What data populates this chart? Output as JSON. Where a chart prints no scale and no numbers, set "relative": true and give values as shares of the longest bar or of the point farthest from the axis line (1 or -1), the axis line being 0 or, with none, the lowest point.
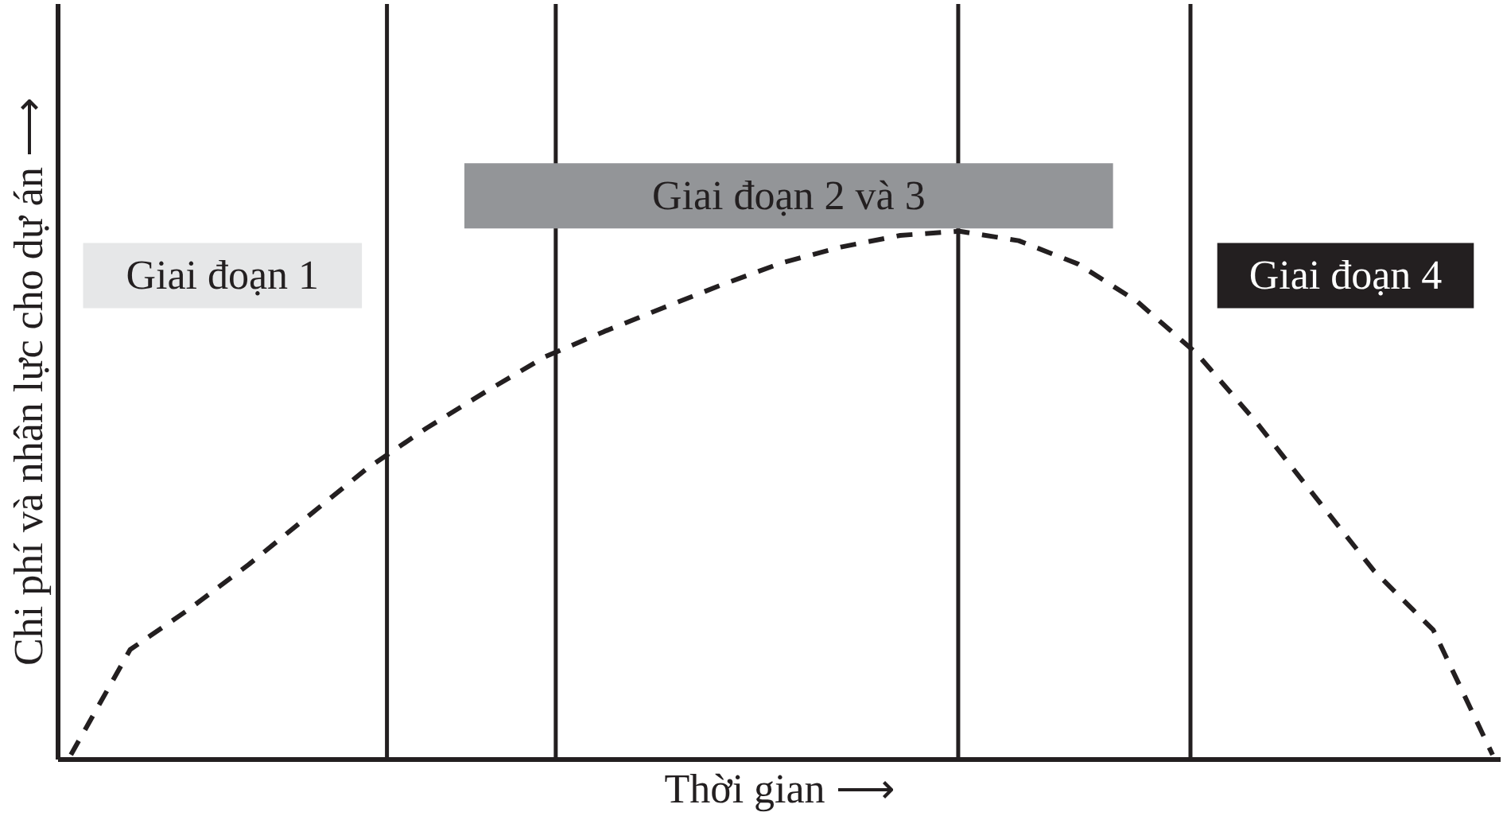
{
  "chart_data": {
    "type": "line",
    "relative": true,
    "xlabel": "Thời gian ⟶",
    "ylabel": "Chi phí và nhân lực cho dự án ⟶",
    "line_style": "dashed",
    "categories": [
      null,
      null,
      null,
      null,
      null,
      null,
      null,
      null,
      null,
      null,
      null,
      null,
      null,
      null,
      null,
      null,
      null,
      null,
      null,
      null,
      null,
      null,
      null,
      null,
      null
    ],
    "series": [
      {
        "color": "#231f20",
        "values": [
          0.009,
          0.208,
          0.285,
          0.369,
          0.46,
          0.551,
          0.627,
          0.696,
          0.762,
          0.81,
          0.855,
          0.899,
          0.94,
          0.97,
          0.992,
          1.0,
          0.982,
          0.938,
          0.867,
          0.769,
          0.64,
          0.498,
          0.357,
          0.245,
          0.009
        ]
      }
    ],
    "annotations": [
      "Giai đoạn 1",
      "Giai đoạn 2 và 3",
      "Giai đoạn 4"
    ]
  }
}
